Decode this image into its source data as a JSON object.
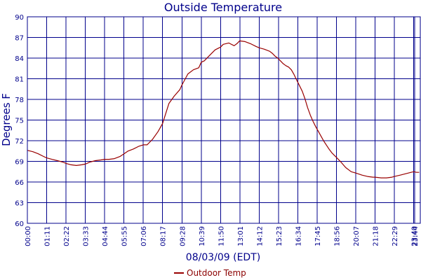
{
  "chart_data": {
    "type": "line",
    "title": "Outside Temperature",
    "xlabel": "08/03/09 (EDT)",
    "ylabel": "Degrees F",
    "ylim": [
      60,
      90
    ],
    "yticks": [
      "60",
      "63",
      "66",
      "69",
      "72",
      "75",
      "78",
      "81",
      "84",
      "87",
      "90"
    ],
    "xticks": [
      "00:00",
      "01:11",
      "02:22",
      "03:33",
      "04:44",
      "05:55",
      "07:06",
      "08:17",
      "09:28",
      "10:39",
      "11:50",
      "13:01",
      "14:12",
      "15:23",
      "16:34",
      "17:45",
      "18:56",
      "20:07",
      "21:18",
      "22:29",
      "23:40",
      "23:44"
    ],
    "grid": true,
    "legend_position": "bottom-center",
    "line_color": "#990000",
    "grid_color": "#00008b",
    "series": [
      {
        "name": "Outdoor Temp",
        "x": [
          0,
          20,
          40,
          60,
          71,
          90,
          110,
          130,
          142,
          160,
          180,
          200,
          213,
          230,
          250,
          270,
          284,
          300,
          320,
          340,
          355,
          370,
          390,
          410,
          426,
          440,
          460,
          480,
          497,
          520,
          540,
          560,
          568,
          590,
          610,
          630,
          639,
          650,
          670,
          690,
          710,
          720,
          740,
          760,
          770,
          780,
          800,
          820,
          840,
          852,
          870,
          890,
          900,
          910,
          920,
          930,
          940,
          950,
          960,
          970,
          980,
          990,
          1000,
          1010,
          1020,
          1030,
          1040,
          1050,
          1060,
          1070,
          1080,
          1090,
          1100,
          1110,
          1120,
          1130,
          1140,
          1150,
          1170,
          1190,
          1207,
          1230,
          1250,
          1270,
          1278,
          1300,
          1320,
          1340,
          1349,
          1370,
          1390,
          1410,
          1420,
          1430,
          1440
        ],
        "values": [
          70.6,
          70.4,
          70.1,
          69.7,
          69.5,
          69.3,
          69.1,
          68.9,
          68.7,
          68.5,
          68.4,
          68.5,
          68.6,
          68.9,
          69.1,
          69.2,
          69.3,
          69.3,
          69.4,
          69.7,
          70.1,
          70.5,
          70.8,
          71.2,
          71.4,
          71.4,
          72.2,
          73.3,
          74.5,
          77.4,
          78.5,
          79.4,
          80.1,
          81.7,
          82.3,
          82.6,
          83.4,
          83.6,
          84.4,
          85.2,
          85.6,
          86.0,
          86.2,
          85.8,
          86.1,
          86.5,
          86.4,
          86.1,
          85.7,
          85.5,
          85.3,
          85.0,
          84.7,
          84.3,
          84.0,
          83.6,
          83.2,
          82.9,
          82.7,
          82.3,
          81.6,
          80.8,
          80.0,
          79.2,
          78.1,
          76.8,
          75.7,
          74.8,
          74.0,
          73.3,
          72.6,
          71.9,
          71.3,
          70.7,
          70.2,
          69.8,
          69.4,
          69.0,
          68.1,
          67.5,
          67.3,
          67.0,
          66.8,
          66.7,
          66.7,
          66.6,
          66.6,
          66.7,
          66.8,
          67.0,
          67.2,
          67.4,
          67.5,
          67.4,
          67.4
        ]
      }
    ]
  }
}
